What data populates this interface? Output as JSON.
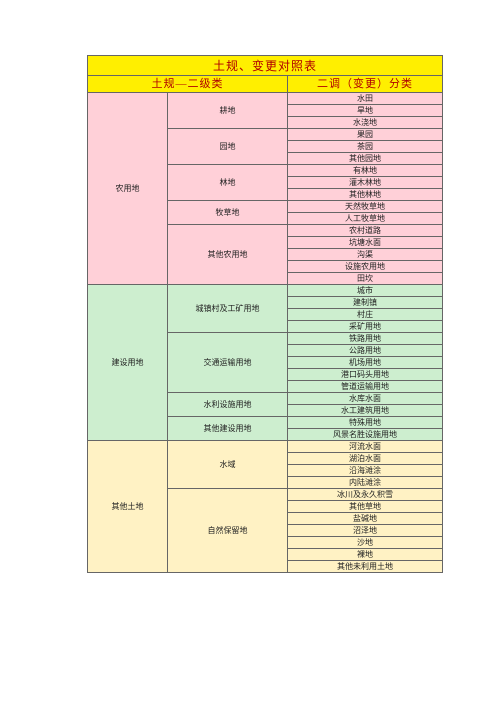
{
  "title": "土规、变更对照表",
  "headers": [
    "土规—二级类",
    "二调（变更）分类"
  ],
  "groups": [
    {
      "name": "农用地",
      "subgroups": [
        {
          "name": "耕地",
          "items": [
            "水田",
            "旱地",
            "水浇地"
          ]
        },
        {
          "name": "园地",
          "items": [
            "果园",
            "茶园",
            "其他园地"
          ]
        },
        {
          "name": "林地",
          "items": [
            "有林地",
            "灌木林地",
            "其他林地"
          ]
        },
        {
          "name": "牧草地",
          "items": [
            "天然牧草地",
            "人工牧草地"
          ]
        },
        {
          "name": "其他农用地",
          "items": [
            "农村道路",
            "坑塘水面",
            "沟渠",
            "设施农用地",
            "田坎"
          ]
        }
      ]
    },
    {
      "name": "建设用地",
      "subgroups": [
        {
          "name": "城镇村及工矿用地",
          "items": [
            "城市",
            "建制镇",
            "村庄",
            "采矿用地"
          ]
        },
        {
          "name": "交通运输用地",
          "items": [
            "铁路用地",
            "公路用地",
            "机场用地",
            "港口码头用地",
            "管道运输用地"
          ]
        },
        {
          "name": "水利设施用地",
          "items": [
            "水库水面",
            "水工建筑用地"
          ]
        },
        {
          "name": "其他建设用地",
          "items": [
            "特殊用地",
            "风景名胜设施用地"
          ]
        }
      ]
    },
    {
      "name": "其他土地",
      "subgroups": [
        {
          "name": "水域",
          "items": [
            "河流水面",
            "湖泊水面",
            "沿海滩涂",
            "内陆滩涂"
          ]
        },
        {
          "name": "自然保留地",
          "items": [
            "冰川及永久积雪",
            "其他草地",
            "盐碱地",
            "沼泽地",
            "沙地",
            "裸地",
            "其他未利用土地"
          ]
        }
      ]
    }
  ]
}
